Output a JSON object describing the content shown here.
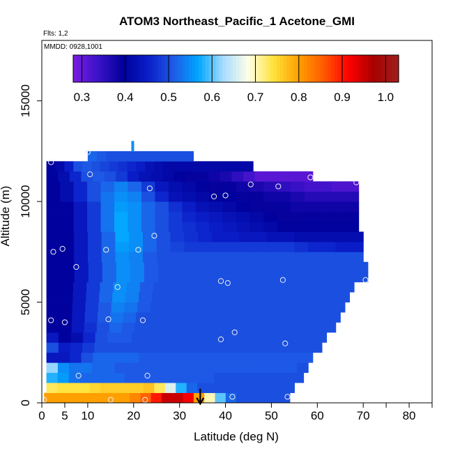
{
  "chart_data": {
    "type": "heatmap",
    "title": "ATOM3 Northeast_Pacific_1 Acetone_GMI",
    "flights_note": "Flts: 1,2",
    "dates_note": "MMDD: 0928,1001",
    "xlabel": "Latitude (deg N)",
    "ylabel": "Altitude (m)",
    "xlim": [
      0,
      85
    ],
    "ylim": [
      0,
      18000
    ],
    "x_ticks": [
      0,
      5,
      10,
      20,
      30,
      40,
      50,
      60,
      70,
      80
    ],
    "y_ticks": [
      0,
      5000,
      10000,
      15000
    ],
    "colorbar": {
      "min": 0.28,
      "max": 1.03,
      "ticks": [
        0.3,
        0.4,
        0.5,
        0.6,
        0.7,
        0.8,
        0.9,
        1.0
      ],
      "tick_labels": [
        "0.3",
        "0.4",
        "0.5",
        "0.6",
        "0.7",
        "0.8",
        "0.9",
        "1.0"
      ],
      "colors": [
        "#7a1de0",
        "#3a12c8",
        "#00009a",
        "#0a1ec8",
        "#1e5ae6",
        "#00a6ff",
        "#a8dcff",
        "#ffffe6",
        "#ffe23a",
        "#ffa000",
        "#ff5a00",
        "#ff0000",
        "#a80000",
        "#a01e1e"
      ]
    },
    "rows": [
      {
        "alt": 250,
        "lat_start": 0.5,
        "lat_end": 54,
        "values": [
          0.8,
          0.8,
          0.8,
          0.8,
          0.8,
          0.8,
          0.8,
          0.8,
          0.82,
          0.85,
          0.9,
          0.95,
          0.95,
          0.92,
          0.8,
          0.7,
          0.6,
          0.52,
          0.5,
          0.5,
          0.5,
          0.5,
          0.5
        ]
      },
      {
        "alt": 750,
        "lat_start": 1,
        "lat_end": 55,
        "values": [
          0.73,
          0.74,
          0.74,
          0.74,
          0.75,
          0.76,
          0.76,
          0.76,
          0.76,
          0.77,
          0.73,
          0.66,
          0.58,
          0.52,
          0.5,
          0.5,
          0.5,
          0.5,
          0.5,
          0.5,
          0.5,
          0.5,
          0.5
        ]
      },
      {
        "alt": 1250,
        "lat_start": 1,
        "lat_end": 57,
        "values": [
          0.58,
          0.56,
          0.53,
          0.52,
          0.52,
          0.52,
          0.52,
          0.51,
          0.51,
          0.51,
          0.51,
          0.51,
          0.51,
          0.51,
          0.51,
          0.5,
          0.5,
          0.5,
          0.5,
          0.5,
          0.5,
          0.5,
          0.5
        ]
      },
      {
        "alt": 1750,
        "lat_start": 1,
        "lat_end": 58,
        "values": [
          0.62,
          0.55,
          0.53,
          0.53,
          0.52,
          0.52,
          0.51,
          0.51,
          0.51,
          0.51,
          0.51,
          0.51,
          0.51,
          0.51,
          0.51,
          0.51,
          0.51,
          0.51,
          0.51,
          0.51,
          0.51,
          0.51,
          0.5
        ]
      },
      {
        "alt": 2250,
        "lat_start": 1,
        "lat_end": 59,
        "values": [
          0.44,
          0.44,
          0.46,
          0.5,
          0.52,
          0.52,
          0.52,
          0.52,
          0.51,
          0.51,
          0.51,
          0.51,
          0.51,
          0.51,
          0.51,
          0.51,
          0.51,
          0.51,
          0.51,
          0.51,
          0.51,
          0.51,
          0.51
        ]
      },
      {
        "alt": 2750,
        "lat_start": 1,
        "lat_end": 61,
        "values": [
          0.5,
          0.45,
          0.46,
          0.48,
          0.5,
          0.5,
          0.5,
          0.5,
          0.5,
          0.5,
          0.5,
          0.5,
          0.5,
          0.5,
          0.5,
          0.5,
          0.5,
          0.5,
          0.5,
          0.5,
          0.5,
          0.5,
          0.5
        ]
      },
      {
        "alt": 3250,
        "lat_start": 1,
        "lat_end": 62,
        "values": [
          0.44,
          0.4,
          0.42,
          0.46,
          0.5,
          0.51,
          0.51,
          0.5,
          0.5,
          0.5,
          0.5,
          0.5,
          0.5,
          0.5,
          0.5,
          0.5,
          0.5,
          0.5,
          0.5,
          0.5,
          0.5,
          0.5,
          0.5
        ]
      },
      {
        "alt": 3750,
        "lat_start": 1,
        "lat_end": 64,
        "values": [
          0.4,
          0.4,
          0.44,
          0.47,
          0.5,
          0.52,
          0.51,
          0.5,
          0.5,
          0.5,
          0.5,
          0.5,
          0.5,
          0.5,
          0.5,
          0.5,
          0.5,
          0.5,
          0.5,
          0.5,
          0.5,
          0.5,
          0.5
        ]
      },
      {
        "alt": 4250,
        "lat_start": 1,
        "lat_end": 65,
        "values": [
          0.4,
          0.4,
          0.44,
          0.48,
          0.51,
          0.53,
          0.52,
          0.5,
          0.5,
          0.5,
          0.5,
          0.5,
          0.5,
          0.5,
          0.5,
          0.5,
          0.5,
          0.5,
          0.5,
          0.5,
          0.5,
          0.5,
          0.5
        ]
      },
      {
        "alt": 4750,
        "lat_start": 1,
        "lat_end": 66,
        "values": [
          0.4,
          0.4,
          0.44,
          0.48,
          0.51,
          0.54,
          0.53,
          0.51,
          0.5,
          0.5,
          0.5,
          0.5,
          0.5,
          0.5,
          0.5,
          0.5,
          0.5,
          0.5,
          0.5,
          0.5,
          0.5,
          0.5,
          0.5
        ]
      },
      {
        "alt": 5250,
        "lat_start": 1,
        "lat_end": 67,
        "values": [
          0.4,
          0.4,
          0.44,
          0.48,
          0.52,
          0.55,
          0.54,
          0.51,
          0.5,
          0.5,
          0.5,
          0.5,
          0.5,
          0.5,
          0.5,
          0.5,
          0.5,
          0.5,
          0.5,
          0.5,
          0.5,
          0.5,
          0.5
        ]
      },
      {
        "alt": 5750,
        "lat_start": 1,
        "lat_end": 68,
        "values": [
          0.4,
          0.4,
          0.44,
          0.48,
          0.52,
          0.55,
          0.54,
          0.51,
          0.5,
          0.5,
          0.5,
          0.5,
          0.5,
          0.5,
          0.5,
          0.5,
          0.5,
          0.5,
          0.5,
          0.5,
          0.5,
          0.5,
          0.5
        ]
      },
      {
        "alt": 6250,
        "lat_start": 1,
        "lat_end": 71,
        "values": [
          0.4,
          0.4,
          0.44,
          0.48,
          0.52,
          0.55,
          0.54,
          0.51,
          0.5,
          0.5,
          0.5,
          0.5,
          0.5,
          0.5,
          0.5,
          0.5,
          0.5,
          0.5,
          0.5,
          0.5,
          0.5,
          0.5,
          0.5
        ]
      },
      {
        "alt": 6750,
        "lat_start": 1,
        "lat_end": 71,
        "values": [
          0.4,
          0.4,
          0.44,
          0.48,
          0.52,
          0.55,
          0.54,
          0.51,
          0.5,
          0.5,
          0.5,
          0.5,
          0.5,
          0.5,
          0.5,
          0.5,
          0.5,
          0.5,
          0.5,
          0.5,
          0.5,
          0.5,
          0.5
        ]
      },
      {
        "alt": 7250,
        "lat_start": 1,
        "lat_end": 70,
        "values": [
          0.4,
          0.4,
          0.44,
          0.48,
          0.52,
          0.55,
          0.54,
          0.51,
          0.5,
          0.5,
          0.5,
          0.5,
          0.5,
          0.5,
          0.5,
          0.5,
          0.5,
          0.5,
          0.5,
          0.5,
          0.5,
          0.5,
          0.5
        ]
      },
      {
        "alt": 7750,
        "lat_start": 1,
        "lat_end": 70,
        "values": [
          0.4,
          0.4,
          0.44,
          0.48,
          0.52,
          0.56,
          0.55,
          0.52,
          0.5,
          0.49,
          0.48,
          0.48,
          0.48,
          0.48,
          0.48,
          0.48,
          0.48,
          0.48,
          0.47,
          0.46,
          0.46,
          0.45,
          0.45
        ]
      },
      {
        "alt": 8250,
        "lat_start": 1,
        "lat_end": 70,
        "values": [
          0.4,
          0.4,
          0.44,
          0.48,
          0.52,
          0.57,
          0.55,
          0.52,
          0.5,
          0.48,
          0.47,
          0.46,
          0.45,
          0.45,
          0.44,
          0.44,
          0.43,
          0.43,
          0.42,
          0.42,
          0.42,
          0.42,
          0.42
        ]
      },
      {
        "alt": 8750,
        "lat_start": 1,
        "lat_end": 69,
        "values": [
          0.4,
          0.4,
          0.44,
          0.48,
          0.53,
          0.57,
          0.55,
          0.52,
          0.5,
          0.48,
          0.47,
          0.46,
          0.45,
          0.44,
          0.43,
          0.42,
          0.41,
          0.4,
          0.4,
          0.4,
          0.4,
          0.4,
          0.4
        ]
      },
      {
        "alt": 9250,
        "lat_start": 1,
        "lat_end": 69,
        "values": [
          0.4,
          0.4,
          0.44,
          0.48,
          0.53,
          0.57,
          0.55,
          0.52,
          0.5,
          0.48,
          0.46,
          0.45,
          0.44,
          0.43,
          0.42,
          0.41,
          0.4,
          0.39,
          0.39,
          0.39,
          0.39,
          0.39,
          0.39
        ]
      },
      {
        "alt": 9750,
        "lat_start": 1,
        "lat_end": 69,
        "values": [
          0.4,
          0.4,
          0.44,
          0.48,
          0.53,
          0.56,
          0.55,
          0.52,
          0.5,
          0.47,
          0.45,
          0.43,
          0.42,
          0.41,
          0.4,
          0.39,
          0.39,
          0.39,
          0.38,
          0.38,
          0.38,
          0.38,
          0.38
        ]
      },
      {
        "alt": 10250,
        "lat_start": 1,
        "lat_end": 69,
        "values": [
          0.4,
          0.42,
          0.46,
          0.5,
          0.53,
          0.55,
          0.54,
          0.5,
          0.46,
          0.43,
          0.42,
          0.41,
          0.4,
          0.4,
          0.39,
          0.39,
          0.38,
          0.38,
          0.37,
          0.36,
          0.36,
          0.36,
          0.36
        ]
      },
      {
        "alt": 10750,
        "lat_start": 1,
        "lat_end": 69,
        "values": [
          0.4,
          0.42,
          0.46,
          0.5,
          0.52,
          0.54,
          0.52,
          0.48,
          0.44,
          0.42,
          0.41,
          0.4,
          0.39,
          0.39,
          0.38,
          0.37,
          0.36,
          0.35,
          0.34,
          0.33,
          0.33,
          0.32,
          0.32
        ]
      },
      {
        "alt": 11250,
        "lat_start": 1,
        "lat_end": 59,
        "values": [
          0.4,
          0.42,
          0.46,
          0.5,
          0.51,
          0.5,
          0.48,
          0.45,
          0.43,
          0.42,
          0.41,
          0.4,
          0.39,
          0.39,
          0.38,
          0.37,
          0.35,
          0.33,
          0.31,
          0.31,
          0.31,
          0.31,
          0.31
        ]
      },
      {
        "alt": 11750,
        "lat_start": 1,
        "lat_end": 46,
        "values": [
          0.4,
          0.41,
          0.45,
          0.5,
          0.51,
          0.5,
          0.49,
          0.48,
          0.47,
          0.46,
          0.45,
          0.43,
          0.42,
          0.41,
          0.41,
          0.41,
          0.41,
          0.41,
          0.41,
          0.41,
          0.41,
          0.41,
          0.41
        ]
      },
      {
        "alt": 12250,
        "lat_start": 10,
        "lat_end": 33,
        "values": [
          0.52,
          0.52,
          0.51,
          0.51,
          0.5,
          0.5,
          0.5,
          0.5,
          0.5,
          0.5,
          0.5,
          0.5,
          0.5,
          0.5,
          0.5,
          0.5,
          0.5,
          0.5,
          0.5,
          0.5,
          0.5,
          0.5,
          0.5
        ]
      },
      {
        "alt": 12750,
        "lat_start": 19.5,
        "lat_end": 20,
        "values": [
          0.55,
          0.55,
          0.55,
          0.55,
          0.55,
          0.55,
          0.55,
          0.55,
          0.55,
          0.55,
          0.55,
          0.55,
          0.55,
          0.55,
          0.55,
          0.55,
          0.55,
          0.55,
          0.55,
          0.55,
          0.55,
          0.55,
          0.55
        ]
      }
    ],
    "observations": [
      {
        "lat": 0.5,
        "alt": 150
      },
      {
        "lat": 15,
        "alt": 150
      },
      {
        "lat": 22.5,
        "alt": 150
      },
      {
        "lat": 41.5,
        "alt": 300
      },
      {
        "lat": 53.5,
        "alt": 300
      },
      {
        "lat": 8,
        "alt": 1350
      },
      {
        "lat": 23,
        "alt": 1350
      },
      {
        "lat": 53,
        "alt": 2950
      },
      {
        "lat": 39,
        "alt": 3150
      },
      {
        "lat": 42,
        "alt": 3500
      },
      {
        "lat": 2,
        "alt": 4100
      },
      {
        "lat": 5,
        "alt": 4000
      },
      {
        "lat": 14.5,
        "alt": 4150
      },
      {
        "lat": 22,
        "alt": 4100
      },
      {
        "lat": 16.5,
        "alt": 5750
      },
      {
        "lat": 39,
        "alt": 6050
      },
      {
        "lat": 40.5,
        "alt": 5950
      },
      {
        "lat": 52.5,
        "alt": 6100
      },
      {
        "lat": 70.5,
        "alt": 6100
      },
      {
        "lat": 7.5,
        "alt": 6750
      },
      {
        "lat": 2.5,
        "alt": 7500
      },
      {
        "lat": 4.5,
        "alt": 7650
      },
      {
        "lat": 14,
        "alt": 7600
      },
      {
        "lat": 21,
        "alt": 7600
      },
      {
        "lat": 24.5,
        "alt": 8300
      },
      {
        "lat": 37.5,
        "alt": 10250
      },
      {
        "lat": 40,
        "alt": 10300
      },
      {
        "lat": 23.5,
        "alt": 10650
      },
      {
        "lat": 45.5,
        "alt": 10850
      },
      {
        "lat": 51.5,
        "alt": 10750
      },
      {
        "lat": 68.5,
        "alt": 10950
      },
      {
        "lat": 58.5,
        "alt": 11200
      },
      {
        "lat": 10.5,
        "alt": 11350
      },
      {
        "lat": 2,
        "alt": 11950
      },
      {
        "lat": 10,
        "alt": 12450
      }
    ],
    "arrow_lat": 34.5,
    "arrow_direction": "down"
  }
}
